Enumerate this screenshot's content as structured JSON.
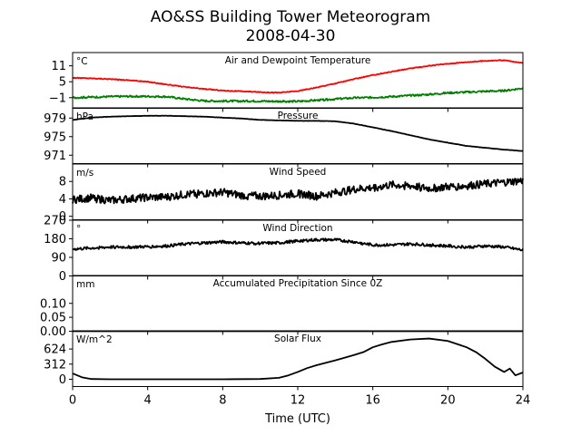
{
  "figure": {
    "title_line1": "AO&SS Building Tower Meteorogram",
    "title_line2": "2008-04-30",
    "xlabel": "Time (UTC)",
    "x_ticks": [
      "0",
      "4",
      "8",
      "12",
      "16",
      "20",
      "24"
    ]
  },
  "chart_data": [
    {
      "type": "line",
      "title": "Air and Dewpoint Temperature",
      "unit": "°C",
      "xlim": [
        0,
        24
      ],
      "ylim": [
        -5,
        16
      ],
      "yticks": [
        -1,
        5,
        11
      ],
      "ytick_labels": [
        "−1",
        "5",
        "11"
      ],
      "x": [
        0,
        1,
        2,
        3,
        4,
        5,
        6,
        7,
        8,
        9,
        10,
        11,
        12,
        13,
        14,
        15,
        16,
        17,
        18,
        19,
        20,
        21,
        22,
        23,
        24
      ],
      "series": [
        {
          "color": "#ff0000",
          "noise": 0.15,
          "values": [
            6.5,
            6.3,
            6.0,
            5.6,
            5.0,
            4.0,
            3.0,
            2.3,
            1.7,
            1.4,
            1.1,
            0.9,
            1.5,
            2.8,
            4.4,
            6.0,
            7.5,
            8.8,
            10.0,
            11.0,
            11.8,
            12.4,
            12.9,
            13.1,
            12.0
          ]
        },
        {
          "color": "#008000",
          "noise": 0.35,
          "values": [
            -1.0,
            -0.8,
            -0.6,
            -0.5,
            -0.5,
            -0.6,
            -1.5,
            -2.2,
            -2.3,
            -2.3,
            -2.3,
            -2.4,
            -2.4,
            -2.0,
            -1.5,
            -1.1,
            -0.9,
            -0.6,
            -0.2,
            0.2,
            0.8,
            1.1,
            1.4,
            1.6,
            2.6
          ]
        }
      ]
    },
    {
      "type": "line",
      "title": "Pressure",
      "unit": "hPa",
      "xlim": [
        0,
        24
      ],
      "ylim": [
        969.2,
        981.2
      ],
      "yticks": [
        971,
        975,
        979
      ],
      "ytick_labels": [
        "971",
        "975",
        "979"
      ],
      "x": [
        0,
        1,
        2,
        3,
        4,
        5,
        6,
        7,
        8,
        9,
        10,
        11,
        12,
        13,
        14,
        15,
        16,
        17,
        18,
        19,
        20,
        21,
        22,
        23,
        24
      ],
      "series": [
        {
          "color": "#000000",
          "noise": 0.03,
          "values": [
            978.6,
            979.1,
            979.3,
            979.4,
            979.5,
            979.5,
            979.4,
            979.3,
            979.1,
            978.9,
            978.6,
            978.5,
            978.4,
            978.4,
            978.3,
            977.8,
            977.0,
            976.2,
            975.3,
            974.4,
            973.7,
            973.0,
            972.6,
            972.2,
            971.9
          ]
        }
      ]
    },
    {
      "type": "line",
      "title": "Wind Speed",
      "unit": "m/s",
      "xlim": [
        0,
        24
      ],
      "ylim": [
        -0.8,
        12
      ],
      "yticks": [
        0,
        4,
        8
      ],
      "ytick_labels": [
        "0",
        "4",
        "8"
      ],
      "x": [
        0,
        1,
        2,
        3,
        4,
        5,
        6,
        7,
        8,
        9,
        10,
        11,
        12,
        13,
        14,
        15,
        16,
        17,
        18,
        19,
        20,
        21,
        22,
        23,
        24
      ],
      "series": [
        {
          "color": "#000000",
          "noise": 0.9,
          "values": [
            3.8,
            4.2,
            3.6,
            4.0,
            4.3,
            4.4,
            5.0,
            5.2,
            5.5,
            4.8,
            4.6,
            4.8,
            5.2,
            4.6,
            5.4,
            6.2,
            6.6,
            7.2,
            7.0,
            6.4,
            6.8,
            7.0,
            7.4,
            7.8,
            8.2
          ]
        }
      ]
    },
    {
      "type": "line",
      "title": "Wind Direction",
      "unit": "°",
      "xlim": [
        0,
        24
      ],
      "ylim": [
        0,
        270
      ],
      "yticks": [
        0,
        90,
        180,
        270
      ],
      "ytick_labels": [
        "0",
        "90",
        "180",
        "270"
      ],
      "x": [
        0,
        1,
        2,
        3,
        4,
        5,
        6,
        7,
        8,
        9,
        10,
        11,
        12,
        13,
        14,
        15,
        16,
        17,
        18,
        19,
        20,
        21,
        22,
        23,
        24
      ],
      "series": [
        {
          "color": "#000000",
          "noise": 7,
          "values": [
            130,
            135,
            140,
            140,
            142,
            145,
            155,
            160,
            165,
            160,
            158,
            160,
            170,
            175,
            175,
            165,
            150,
            150,
            155,
            150,
            145,
            140,
            145,
            140,
            125
          ]
        }
      ]
    },
    {
      "type": "line",
      "title": "Accumulated Precipitation Since 0Z",
      "unit": "mm",
      "xlim": [
        0,
        24
      ],
      "ylim": [
        0,
        0.2
      ],
      "yticks": [
        0.0,
        0.05,
        0.1
      ],
      "ytick_labels": [
        "0.00",
        "0.05",
        "0.10"
      ],
      "x": [
        0,
        24
      ],
      "series": [
        {
          "color": "#000000",
          "noise": 0,
          "values": [
            0,
            0
          ]
        }
      ]
    },
    {
      "type": "line",
      "title": "Solar Flux",
      "unit": "W/m^2",
      "xlim": [
        0,
        24
      ],
      "ylim": [
        -150,
        1000
      ],
      "yticks": [
        0,
        312,
        624
      ],
      "ytick_labels": [
        "0",
        "312",
        "624"
      ],
      "x": [
        0,
        0.5,
        1,
        2,
        4,
        6,
        8,
        10,
        11,
        11.5,
        12,
        12.5,
        13,
        14,
        15,
        15.5,
        16,
        16.5,
        17,
        18,
        19,
        20,
        21,
        21.5,
        22,
        22.5,
        23,
        23.3,
        23.6,
        24
      ],
      "series": [
        {
          "color": "#000000",
          "noise": 0,
          "values": [
            120,
            40,
            5,
            0,
            0,
            0,
            0,
            5,
            30,
            80,
            150,
            230,
            290,
            390,
            500,
            560,
            660,
            720,
            770,
            820,
            840,
            790,
            660,
            560,
            420,
            260,
            150,
            220,
            80,
            140
          ]
        }
      ]
    }
  ]
}
